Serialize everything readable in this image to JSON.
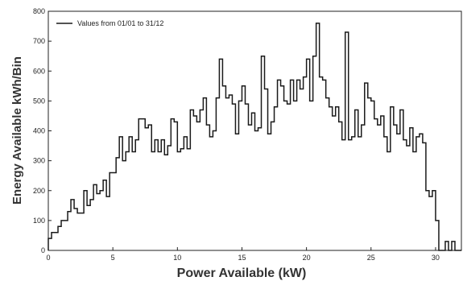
{
  "chart_data": {
    "type": "line",
    "title": "",
    "xlabel": "Power Available (kW)",
    "ylabel": "Energy Available kWh/Bin",
    "xlim": [
      0,
      32
    ],
    "ylim": [
      0,
      800
    ],
    "xticks": [
      0,
      5,
      10,
      15,
      20,
      25,
      30
    ],
    "yticks": [
      0,
      100,
      200,
      300,
      400,
      500,
      600,
      700,
      800
    ],
    "grid": false,
    "legend_position": "top-left",
    "series": [
      {
        "name": "Values from 01/01 to 31/12",
        "color": "#1a1a1a",
        "x": [
          0.0,
          0.25,
          0.5,
          0.75,
          1.0,
          1.25,
          1.5,
          1.75,
          2.0,
          2.25,
          2.5,
          2.75,
          3.0,
          3.25,
          3.5,
          3.75,
          4.0,
          4.25,
          4.5,
          4.75,
          5.0,
          5.25,
          5.5,
          5.75,
          6.0,
          6.25,
          6.5,
          6.75,
          7.0,
          7.25,
          7.5,
          7.75,
          8.0,
          8.25,
          8.5,
          8.75,
          9.0,
          9.25,
          9.5,
          9.75,
          10.0,
          10.25,
          10.5,
          10.75,
          11.0,
          11.25,
          11.5,
          11.75,
          12.0,
          12.25,
          12.5,
          12.75,
          13.0,
          13.25,
          13.5,
          13.75,
          14.0,
          14.25,
          14.5,
          14.75,
          15.0,
          15.25,
          15.5,
          15.75,
          16.0,
          16.25,
          16.5,
          16.75,
          17.0,
          17.25,
          17.5,
          17.75,
          18.0,
          18.25,
          18.5,
          18.75,
          19.0,
          19.25,
          19.5,
          19.75,
          20.0,
          20.25,
          20.5,
          20.75,
          21.0,
          21.25,
          21.5,
          21.75,
          22.0,
          22.25,
          22.5,
          22.75,
          23.0,
          23.25,
          23.5,
          23.75,
          24.0,
          24.25,
          24.5,
          24.75,
          25.0,
          25.25,
          25.5,
          25.75,
          26.0,
          26.25,
          26.5,
          26.75,
          27.0,
          27.25,
          27.5,
          27.75,
          28.0,
          28.25,
          28.5,
          28.75,
          29.0,
          29.25,
          29.5,
          29.75,
          30.0,
          30.25,
          30.5,
          30.75,
          31.0,
          31.25,
          31.5,
          31.75
        ],
        "values": [
          40,
          60,
          60,
          80,
          100,
          100,
          130,
          170,
          140,
          125,
          125,
          200,
          150,
          170,
          220,
          190,
          200,
          235,
          180,
          260,
          260,
          310,
          380,
          300,
          330,
          380,
          330,
          370,
          440,
          440,
          410,
          420,
          330,
          370,
          330,
          370,
          320,
          350,
          440,
          430,
          330,
          340,
          380,
          340,
          470,
          450,
          430,
          470,
          510,
          420,
          380,
          400,
          510,
          640,
          550,
          510,
          520,
          490,
          390,
          500,
          550,
          490,
          420,
          460,
          400,
          410,
          650,
          540,
          390,
          430,
          480,
          570,
          550,
          500,
          490,
          570,
          500,
          570,
          540,
          580,
          640,
          500,
          650,
          760,
          580,
          570,
          510,
          480,
          450,
          480,
          430,
          370,
          730,
          370,
          380,
          470,
          380,
          420,
          560,
          510,
          500,
          440,
          420,
          450,
          380,
          330,
          480,
          420,
          390,
          470,
          370,
          350,
          410,
          330,
          380,
          390,
          360,
          200,
          180,
          200,
          100,
          0,
          0,
          30,
          0,
          30,
          0,
          0
        ]
      }
    ]
  }
}
